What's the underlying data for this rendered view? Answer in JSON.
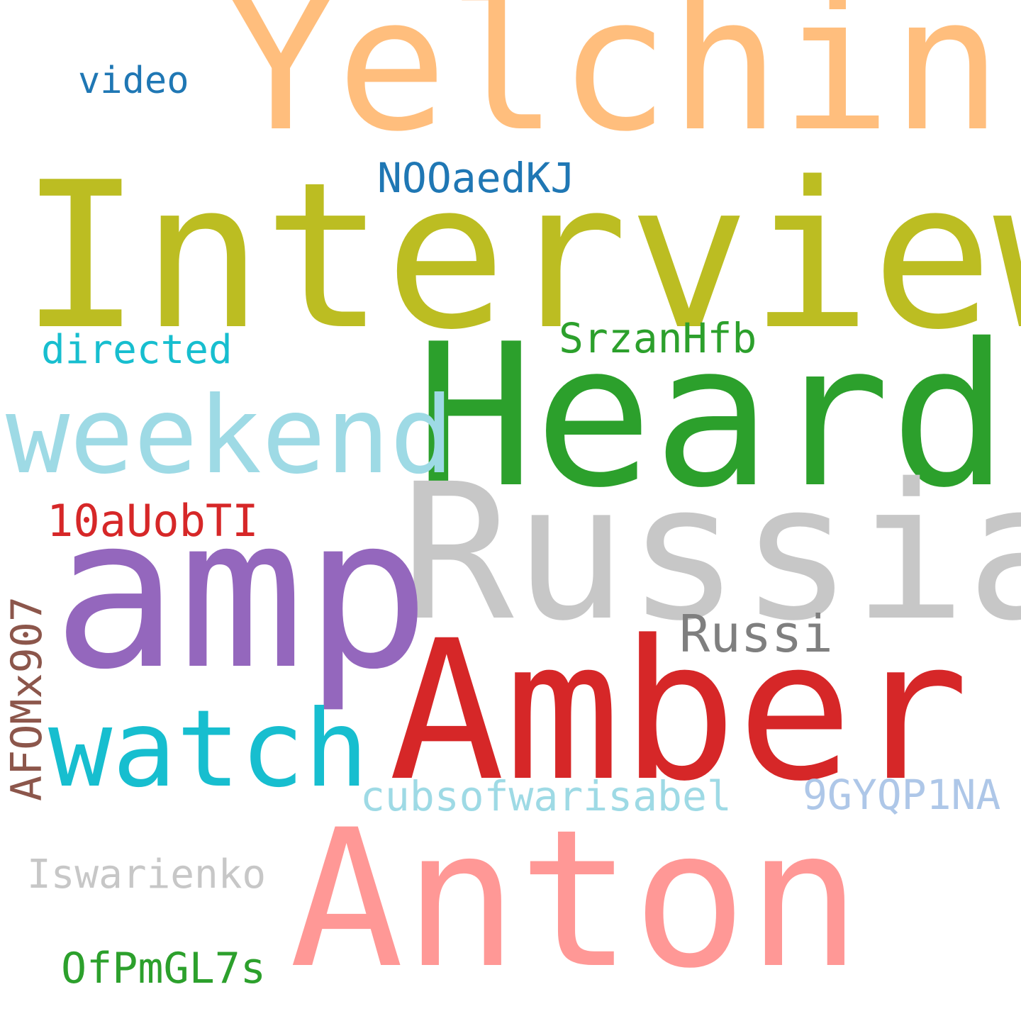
{
  "words": [
    {
      "id": "yelchin",
      "text": "Yelchin",
      "color": "#ffbe7d"
    },
    {
      "id": "video",
      "text": "video",
      "color": "#1f77b4"
    },
    {
      "id": "nooaedkj",
      "text": "NOOaedKJ",
      "color": "#1f77b4"
    },
    {
      "id": "interview",
      "text": "Interview",
      "color": "#bcbd22"
    },
    {
      "id": "srzanhfb",
      "text": "SrzanHfb",
      "color": "#2ca02c"
    },
    {
      "id": "directed",
      "text": "directed",
      "color": "#17becf"
    },
    {
      "id": "heard",
      "text": "Heard",
      "color": "#2ca02c"
    },
    {
      "id": "weekend",
      "text": "weekend",
      "color": "#9edae5"
    },
    {
      "id": "russia",
      "text": "Russia",
      "color": "#c7c7c7"
    },
    {
      "id": "10auobti",
      "text": "10aUobTI",
      "color": "#d62728"
    },
    {
      "id": "amp",
      "text": "amp",
      "color": "#9467bd"
    },
    {
      "id": "russi",
      "text": "Russi",
      "color": "#7f7f7f"
    },
    {
      "id": "afom",
      "text": "AFOMx907",
      "color": "#8c564b"
    },
    {
      "id": "amber",
      "text": "Amber",
      "color": "#d62728"
    },
    {
      "id": "watch",
      "text": "watch",
      "color": "#17becf"
    },
    {
      "id": "cubs",
      "text": "cubsofwarisabel",
      "color": "#9edae5"
    },
    {
      "id": "9gyq",
      "text": "9GYQP1NA",
      "color": "#aec7e8"
    },
    {
      "id": "iswar",
      "text": "Iswarienko",
      "color": "#c7c7c7"
    },
    {
      "id": "anton",
      "text": "Anton",
      "color": "#ff9896"
    },
    {
      "id": "ofpm",
      "text": "OfPmGL7s",
      "color": "#2ca02c"
    }
  ]
}
